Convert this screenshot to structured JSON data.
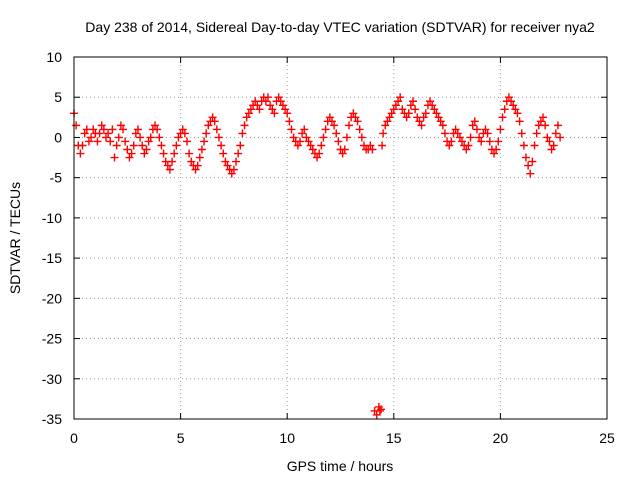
{
  "chart_data": {
    "type": "scatter",
    "title": "Day 238 of 2014, Sidereal Day-to-day VTEC variation (SDTVAR) for receiver nya2",
    "xlabel": "GPS time / hours",
    "ylabel": "SDTVAR / TECUs",
    "xlim": [
      0,
      25
    ],
    "ylim": [
      -35,
      10
    ],
    "xticks": [
      0,
      5,
      10,
      15,
      20,
      25
    ],
    "yticks": [
      10,
      5,
      0,
      -5,
      -10,
      -15,
      -20,
      -25,
      -30,
      -35
    ],
    "grid": true,
    "marker": "plus",
    "marker_color": "#ff0000",
    "series": [
      {
        "name": "SDTVAR",
        "x": [
          0.0,
          0.1,
          0.2,
          0.3,
          0.4,
          0.5,
          0.6,
          0.7,
          0.8,
          0.9,
          1.0,
          1.1,
          1.2,
          1.3,
          1.4,
          1.5,
          1.6,
          1.7,
          1.8,
          1.9,
          2.0,
          2.1,
          2.2,
          2.3,
          2.4,
          2.5,
          2.6,
          2.7,
          2.8,
          2.9,
          3.0,
          3.1,
          3.2,
          3.3,
          3.4,
          3.5,
          3.6,
          3.7,
          3.8,
          3.9,
          4.0,
          4.1,
          4.2,
          4.3,
          4.4,
          4.5,
          4.6,
          4.7,
          4.8,
          4.9,
          5.0,
          5.1,
          5.2,
          5.3,
          5.4,
          5.5,
          5.6,
          5.7,
          5.8,
          5.9,
          6.0,
          6.1,
          6.2,
          6.3,
          6.4,
          6.5,
          6.6,
          6.7,
          6.8,
          6.9,
          7.0,
          7.1,
          7.2,
          7.3,
          7.4,
          7.5,
          7.6,
          7.7,
          7.8,
          7.9,
          8.0,
          8.1,
          8.2,
          8.3,
          8.4,
          8.5,
          8.6,
          8.7,
          8.8,
          8.9,
          9.0,
          9.1,
          9.2,
          9.3,
          9.4,
          9.5,
          9.6,
          9.7,
          9.8,
          9.9,
          10.0,
          10.1,
          10.2,
          10.3,
          10.4,
          10.5,
          10.6,
          10.7,
          10.8,
          10.9,
          11.0,
          11.1,
          11.2,
          11.3,
          11.4,
          11.5,
          11.6,
          11.7,
          11.8,
          11.9,
          12.0,
          12.1,
          12.2,
          12.3,
          12.4,
          12.5,
          12.6,
          12.7,
          12.8,
          12.9,
          13.0,
          13.1,
          13.2,
          13.3,
          13.4,
          13.5,
          13.6,
          13.7,
          13.8,
          13.9,
          14.0,
          14.1,
          14.2,
          14.3,
          14.35,
          14.4,
          14.45,
          14.5,
          14.6,
          14.7,
          14.8,
          14.9,
          15.0,
          15.1,
          15.2,
          15.3,
          15.4,
          15.5,
          15.6,
          15.7,
          15.8,
          15.9,
          16.0,
          16.1,
          16.2,
          16.3,
          16.4,
          16.5,
          16.6,
          16.7,
          16.8,
          16.9,
          17.0,
          17.1,
          17.2,
          17.3,
          17.4,
          17.5,
          17.6,
          17.7,
          17.8,
          17.9,
          18.0,
          18.1,
          18.2,
          18.3,
          18.4,
          18.5,
          18.6,
          18.7,
          18.8,
          18.9,
          19.0,
          19.1,
          19.2,
          19.3,
          19.4,
          19.5,
          19.6,
          19.7,
          19.8,
          19.9,
          20.0,
          20.1,
          20.2,
          20.3,
          20.4,
          20.5,
          20.6,
          20.7,
          20.8,
          20.9,
          21.0,
          21.1,
          21.2,
          21.3,
          21.4,
          21.5,
          21.6,
          21.7,
          21.8,
          21.9,
          22.0,
          22.1,
          22.2,
          22.3,
          22.4,
          22.5,
          22.6,
          22.7,
          22.8
        ],
        "y": [
          3.0,
          1.5,
          -1.0,
          -2.0,
          -1.0,
          0.5,
          1.0,
          -0.5,
          0.0,
          1.0,
          0.5,
          -0.5,
          0.5,
          1.5,
          1.0,
          0.0,
          0.5,
          -0.5,
          1.0,
          -2.5,
          -1.0,
          0.0,
          1.5,
          1.0,
          -0.5,
          -1.5,
          -2.5,
          -2.0,
          -1.0,
          0.5,
          1.0,
          0.0,
          -1.0,
          -2.0,
          -1.5,
          -0.5,
          0.0,
          1.0,
          1.5,
          1.0,
          0.0,
          -1.0,
          -2.0,
          -3.0,
          -3.5,
          -4.0,
          -3.0,
          -2.0,
          -1.0,
          0.0,
          0.5,
          1.0,
          0.5,
          -0.5,
          -2.0,
          -3.0,
          -3.5,
          -4.0,
          -3.5,
          -2.5,
          -1.5,
          -0.5,
          0.5,
          1.5,
          2.0,
          2.5,
          2.0,
          1.0,
          0.0,
          -1.0,
          -2.0,
          -3.0,
          -3.5,
          -4.0,
          -4.5,
          -4.0,
          -3.0,
          -2.0,
          -1.0,
          0.5,
          1.5,
          2.5,
          3.0,
          3.5,
          4.0,
          4.5,
          4.0,
          3.5,
          4.5,
          5.0,
          4.5,
          5.0,
          4.0,
          3.5,
          3.0,
          4.5,
          5.0,
          4.5,
          4.0,
          3.5,
          3.0,
          2.0,
          1.0,
          0.0,
          -0.5,
          -1.0,
          -0.5,
          0.5,
          1.0,
          0.0,
          -0.5,
          -1.0,
          -1.5,
          -2.0,
          -2.5,
          -2.0,
          -1.0,
          0.0,
          1.0,
          2.0,
          2.5,
          2.0,
          1.5,
          0.5,
          -0.5,
          -1.5,
          -2.0,
          -1.5,
          0.0,
          1.5,
          2.5,
          3.0,
          2.5,
          2.0,
          1.0,
          0.0,
          -1.0,
          -1.5,
          -1.5,
          -1.0,
          -1.5,
          -34.0,
          -34.5,
          -33.5,
          -34.0,
          -33.8,
          -1.0,
          0.5,
          1.5,
          2.0,
          2.5,
          3.0,
          3.5,
          4.0,
          4.5,
          5.0,
          3.5,
          3.0,
          2.5,
          3.0,
          4.0,
          4.5,
          3.5,
          2.5,
          2.0,
          1.5,
          2.5,
          3.0,
          4.0,
          4.5,
          4.0,
          3.5,
          3.0,
          2.5,
          2.0,
          1.5,
          0.5,
          -0.5,
          -1.0,
          -0.5,
          0.5,
          1.0,
          0.5,
          0.0,
          -0.5,
          -1.0,
          -1.5,
          -1.0,
          0.0,
          1.5,
          2.0,
          1.0,
          0.0,
          -0.5,
          0.5,
          1.0,
          0.5,
          -0.5,
          -1.5,
          -2.0,
          -1.5,
          -0.5,
          1.0,
          2.5,
          3.5,
          4.5,
          5.0,
          4.5,
          4.0,
          3.5,
          3.0,
          2.0,
          0.5,
          -1.0,
          -2.5,
          -3.5,
          -4.5,
          -3.0,
          -1.0,
          0.5,
          1.5,
          2.0,
          2.5,
          1.5,
          0.0,
          -0.5,
          -1.5,
          -1.0,
          0.5,
          1.5,
          0.0
        ]
      }
    ]
  },
  "colors": {
    "marker": "#ff0000",
    "grid": "#a0a0a0",
    "axis": "#000000",
    "background": "#ffffff"
  }
}
